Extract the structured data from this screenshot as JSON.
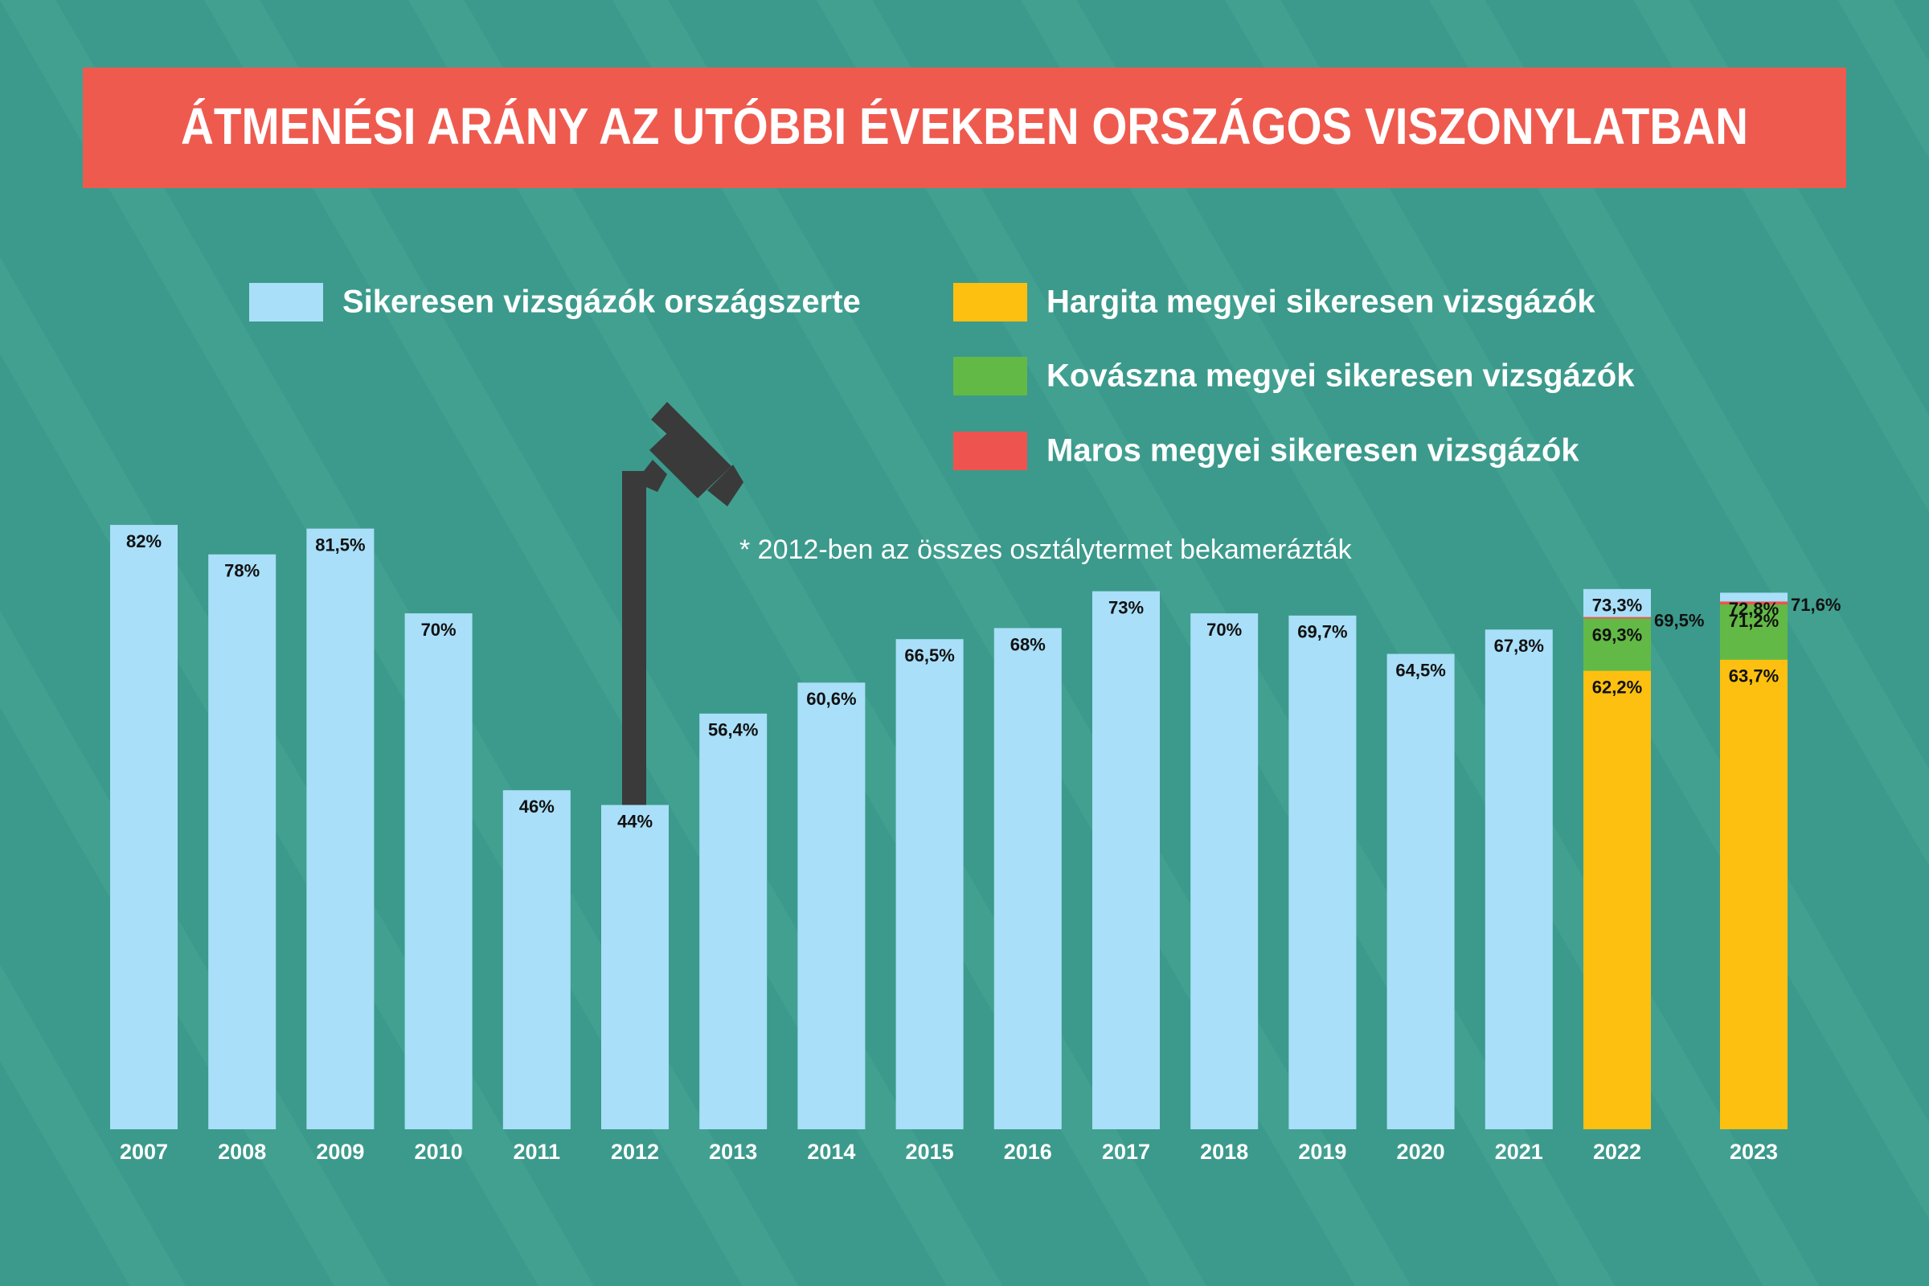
{
  "chart_data": {
    "type": "bar",
    "title": "ÁTMENÉSI ARÁNY AZ UTÓBBI ÉVEKBEN ORSZÁGOS VISZONYLATBAN",
    "annotation": "* 2012-ben az összes osztálytermet bekamerázták",
    "categories": [
      "2007",
      "2008",
      "2009",
      "2010",
      "2011",
      "2012",
      "2013",
      "2014",
      "2015",
      "2016",
      "2017",
      "2018",
      "2019",
      "2020",
      "2021",
      "2022",
      "2023"
    ],
    "series": [
      {
        "name": "Sikeresen vizsgázók országszerte",
        "color": "#a9dff9",
        "values": [
          82,
          78,
          81.5,
          70,
          46,
          44,
          56.4,
          60.6,
          66.5,
          68,
          73,
          70,
          69.7,
          64.5,
          67.8,
          73.3,
          72.8
        ],
        "value_labels": [
          "82%",
          "78%",
          "81,5%",
          "70%",
          "46%",
          "44%",
          "56,4%",
          "60,6%",
          "66,5%",
          "68%",
          "73%",
          "70%",
          "69,7%",
          "64,5%",
          "67,8%",
          "73,3%",
          "72,8%"
        ]
      },
      {
        "name": "Hargita megyei sikeresen vizsgázók",
        "color": "#fdc010",
        "values": [
          null,
          null,
          null,
          null,
          null,
          null,
          null,
          null,
          null,
          null,
          null,
          null,
          null,
          null,
          null,
          62.2,
          63.7
        ],
        "value_labels": [
          null,
          null,
          null,
          null,
          null,
          null,
          null,
          null,
          null,
          null,
          null,
          null,
          null,
          null,
          null,
          "62,2%",
          "63,7%"
        ]
      },
      {
        "name": "Kovászna megyei sikeresen vizsgázók",
        "color": "#63b946",
        "values": [
          null,
          null,
          null,
          null,
          null,
          null,
          null,
          null,
          null,
          null,
          null,
          null,
          null,
          null,
          null,
          69.3,
          71.2
        ],
        "value_labels": [
          null,
          null,
          null,
          null,
          null,
          null,
          null,
          null,
          null,
          null,
          null,
          null,
          null,
          null,
          null,
          "69,3%",
          "71,2%"
        ]
      },
      {
        "name": "Maros megyei sikeresen vizsgázók",
        "color": "#ef5350",
        "values": [
          null,
          null,
          null,
          null,
          null,
          null,
          null,
          null,
          null,
          null,
          null,
          null,
          null,
          null,
          null,
          69.5,
          71.6
        ],
        "value_labels": [
          null,
          null,
          null,
          null,
          null,
          null,
          null,
          null,
          null,
          null,
          null,
          null,
          null,
          null,
          null,
          "69,5%",
          "71,6%"
        ]
      }
    ]
  }
}
